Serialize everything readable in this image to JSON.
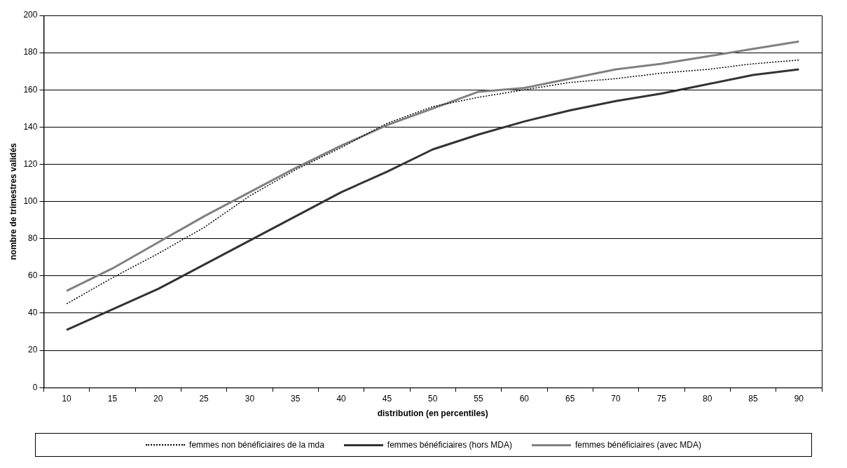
{
  "chart_data": {
    "type": "line",
    "xlabel": "distribution (en percentiles)",
    "ylabel": "nombre de trimestres validés",
    "categories": [
      "10",
      "15",
      "20",
      "25",
      "30",
      "35",
      "40",
      "45",
      "50",
      "55",
      "60",
      "65",
      "70",
      "75",
      "80",
      "85",
      "90"
    ],
    "series": [
      {
        "name": "femmes non bénéficiaires de la mda",
        "color": "#000000",
        "line_style": "dotted",
        "values": [
          45,
          59,
          72,
          86,
          103,
          117,
          129,
          142,
          151,
          156,
          160,
          164,
          166,
          169,
          171,
          174,
          176
        ]
      },
      {
        "name": "femmes bénéficiaires (hors MDA)",
        "color": "#333333",
        "line_style": "solid",
        "values": [
          31,
          42,
          53,
          66,
          79,
          92,
          105,
          116,
          128,
          136,
          143,
          149,
          154,
          158,
          163,
          168,
          171
        ]
      },
      {
        "name": "femmes bénéficiaires (avec MDA)",
        "color": "#808080",
        "line_style": "solid",
        "values": [
          52,
          64,
          78,
          92,
          105,
          118,
          130,
          141,
          150,
          159,
          161,
          166,
          171,
          174,
          178,
          182,
          186
        ]
      }
    ],
    "ylim": [
      0,
      200
    ],
    "yticks": [
      0,
      20,
      40,
      60,
      80,
      100,
      120,
      140,
      160,
      180,
      200
    ],
    "grid": "y",
    "legend": "bottom",
    "marker": "none"
  }
}
